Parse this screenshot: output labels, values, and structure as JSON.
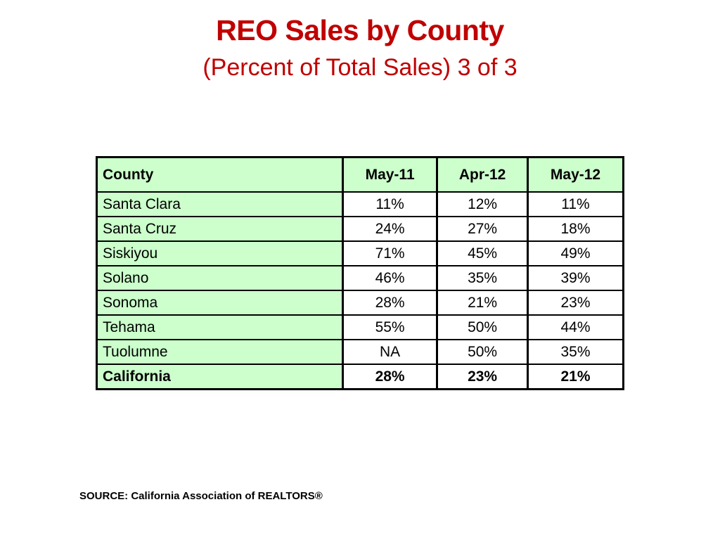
{
  "slide": {
    "title": "REO Sales by County",
    "subtitle": "(Percent of Total Sales) 3 of 3",
    "source": "SOURCE: California Association of REALTORS®"
  },
  "table": {
    "headers": [
      "County",
      "May-11",
      "Apr-12",
      "May-12"
    ],
    "rows": [
      [
        "Santa Clara",
        "11%",
        "12%",
        "11%"
      ],
      [
        "Santa Cruz",
        "24%",
        "27%",
        "18%"
      ],
      [
        "Siskiyou",
        "71%",
        "45%",
        "49%"
      ],
      [
        "Solano",
        "46%",
        "35%",
        "39%"
      ],
      [
        "Sonoma",
        "28%",
        "21%",
        "23%"
      ],
      [
        "Tehama",
        "55%",
        "50%",
        "44%"
      ],
      [
        "Tuolumne",
        "NA",
        "50%",
        "35%"
      ]
    ],
    "total": [
      "California",
      "28%",
      "23%",
      "21%"
    ]
  },
  "colors": {
    "title": "#c00000",
    "header_fill": "#ccffcc"
  }
}
